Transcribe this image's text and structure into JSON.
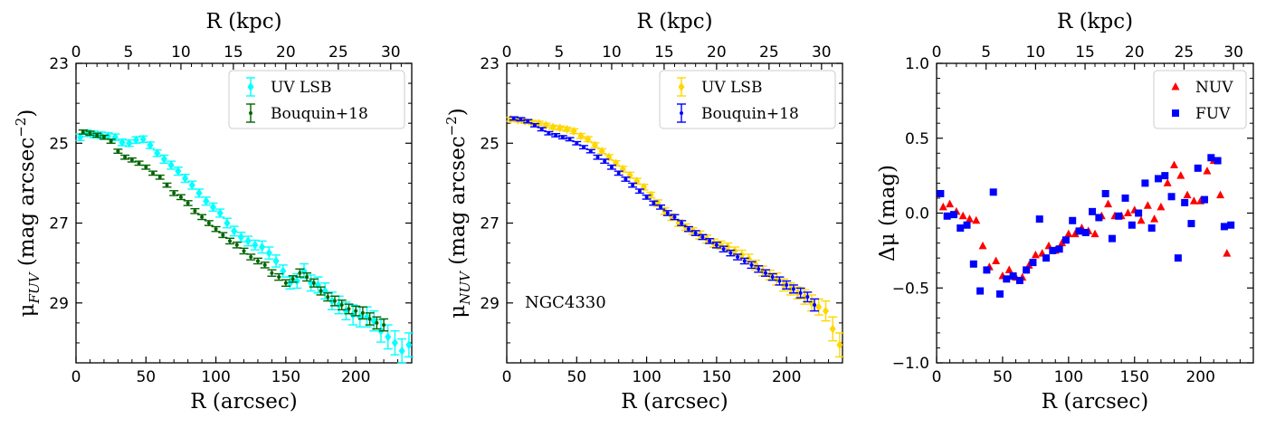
{
  "chart_data": [
    {
      "id": "fuv",
      "type": "scatter",
      "title": "",
      "xlabel": "R (arcsec)",
      "ylabel": "μFUV (mag arcsec−2)",
      "ylabel_main": "μ",
      "ylabel_sub": "FUV",
      "ylabel_unit": " (mag arcsec",
      "ylabel_exp": "−2",
      "ylabel_close": ")",
      "top_xlabel": "R (kpc)",
      "xlim": [
        0,
        240
      ],
      "ylim": [
        30.5,
        23
      ],
      "top_xlim": [
        0,
        32
      ],
      "x_ticks": [
        0,
        50,
        100,
        150,
        200
      ],
      "y_ticks": [
        23,
        25,
        27,
        29
      ],
      "top_ticks": [
        0,
        5,
        10,
        15,
        20,
        25,
        30
      ],
      "legend": "top-right",
      "annotation": "",
      "series": [
        {
          "name": "UV LSB",
          "color": "#00ffff",
          "marker": "diamond-errorbar",
          "x": [
            3,
            8,
            13,
            18,
            23,
            28,
            33,
            38,
            43,
            48,
            53,
            58,
            63,
            68,
            73,
            78,
            83,
            88,
            93,
            98,
            103,
            108,
            113,
            118,
            123,
            128,
            133,
            138,
            143,
            148,
            153,
            158,
            163,
            168,
            173,
            178,
            183,
            188,
            193,
            198,
            203,
            208,
            213,
            218,
            223,
            228,
            233,
            238
          ],
          "y": [
            24.85,
            24.75,
            24.78,
            24.8,
            24.82,
            24.85,
            24.98,
            25.0,
            24.92,
            24.9,
            25.05,
            25.25,
            25.4,
            25.55,
            25.7,
            25.88,
            26.05,
            26.25,
            26.45,
            26.6,
            26.75,
            27.0,
            27.2,
            27.35,
            27.45,
            27.55,
            27.6,
            27.75,
            27.95,
            28.2,
            28.5,
            28.45,
            28.2,
            28.5,
            28.55,
            28.7,
            28.95,
            29.05,
            29.2,
            29.3,
            29.35,
            29.35,
            29.45,
            29.7,
            29.85,
            30.0,
            30.2,
            30.05
          ],
          "err": [
            0.08,
            0.08,
            0.08,
            0.08,
            0.08,
            0.08,
            0.08,
            0.08,
            0.08,
            0.08,
            0.08,
            0.08,
            0.1,
            0.1,
            0.1,
            0.1,
            0.1,
            0.1,
            0.1,
            0.1,
            0.1,
            0.12,
            0.12,
            0.12,
            0.12,
            0.12,
            0.15,
            0.15,
            0.15,
            0.15,
            0.15,
            0.18,
            0.18,
            0.2,
            0.2,
            0.2,
            0.22,
            0.22,
            0.22,
            0.25,
            0.25,
            0.25,
            0.25,
            0.28,
            0.3,
            0.3,
            0.3,
            0.3
          ]
        },
        {
          "name": "Bouquin+18",
          "color": "#006400",
          "marker": "dot-errorbar",
          "x": [
            5,
            10,
            15,
            20,
            25,
            30,
            35,
            40,
            45,
            50,
            55,
            60,
            65,
            70,
            75,
            80,
            85,
            90,
            95,
            100,
            105,
            110,
            115,
            120,
            125,
            130,
            135,
            140,
            145,
            150,
            155,
            160,
            165,
            170,
            175,
            180,
            185,
            190,
            195,
            200,
            205,
            210,
            215,
            220
          ],
          "y": [
            24.72,
            24.75,
            24.8,
            24.85,
            24.95,
            25.2,
            25.35,
            25.42,
            25.5,
            25.6,
            25.75,
            25.85,
            26.05,
            26.25,
            26.35,
            26.5,
            26.7,
            26.85,
            27.0,
            27.15,
            27.3,
            27.45,
            27.55,
            27.7,
            27.85,
            27.95,
            28.05,
            28.25,
            28.35,
            28.5,
            28.4,
            28.25,
            28.35,
            28.5,
            28.7,
            28.85,
            28.95,
            29.05,
            29.15,
            29.2,
            29.25,
            29.4,
            29.5,
            29.55
          ],
          "err": [
            0.05,
            0.05,
            0.05,
            0.05,
            0.05,
            0.05,
            0.05,
            0.05,
            0.05,
            0.05,
            0.05,
            0.05,
            0.05,
            0.06,
            0.06,
            0.06,
            0.06,
            0.06,
            0.06,
            0.06,
            0.06,
            0.07,
            0.07,
            0.07,
            0.07,
            0.07,
            0.07,
            0.08,
            0.08,
            0.08,
            0.08,
            0.1,
            0.1,
            0.1,
            0.1,
            0.1,
            0.12,
            0.12,
            0.12,
            0.12,
            0.15,
            0.15,
            0.15,
            0.15
          ]
        }
      ]
    },
    {
      "id": "nuv",
      "type": "scatter",
      "title": "",
      "xlabel": "R (arcsec)",
      "ylabel": "μNUV (mag arcsec−2)",
      "ylabel_main": "μ",
      "ylabel_sub": "NUV",
      "ylabel_unit": " (mag arcsec",
      "ylabel_exp": "−2",
      "ylabel_close": ")",
      "top_xlabel": "R (kpc)",
      "xlim": [
        0,
        240
      ],
      "ylim": [
        30.5,
        23
      ],
      "top_xlim": [
        0,
        32
      ],
      "x_ticks": [
        0,
        50,
        100,
        150,
        200
      ],
      "y_ticks": [
        23,
        25,
        27,
        29
      ],
      "top_ticks": [
        0,
        5,
        10,
        15,
        20,
        25,
        30
      ],
      "legend": "top-right",
      "annotation": "NGC4330",
      "series": [
        {
          "name": "UV LSB",
          "color": "#ffd700",
          "marker": "diamond-errorbar",
          "x": [
            3,
            8,
            13,
            18,
            23,
            28,
            33,
            38,
            43,
            48,
            53,
            58,
            63,
            68,
            73,
            78,
            83,
            88,
            93,
            98,
            103,
            108,
            113,
            118,
            123,
            128,
            133,
            138,
            143,
            148,
            153,
            158,
            163,
            168,
            173,
            178,
            183,
            188,
            193,
            198,
            203,
            208,
            213,
            218,
            223,
            228,
            233,
            238
          ],
          "y": [
            24.4,
            24.42,
            24.45,
            24.48,
            24.5,
            24.55,
            24.6,
            24.62,
            24.65,
            24.7,
            24.82,
            24.9,
            25.05,
            25.2,
            25.35,
            25.5,
            25.65,
            25.8,
            25.95,
            26.1,
            26.3,
            26.5,
            26.7,
            26.85,
            27.0,
            27.1,
            27.2,
            27.3,
            27.4,
            27.5,
            27.55,
            27.6,
            27.7,
            27.8,
            27.9,
            28.05,
            28.2,
            28.3,
            28.4,
            28.55,
            28.65,
            28.75,
            28.85,
            29.0,
            29.1,
            29.2,
            29.65,
            30.05
          ],
          "err": [
            0.05,
            0.05,
            0.05,
            0.05,
            0.05,
            0.05,
            0.05,
            0.05,
            0.05,
            0.06,
            0.06,
            0.06,
            0.06,
            0.06,
            0.06,
            0.06,
            0.07,
            0.07,
            0.07,
            0.07,
            0.07,
            0.08,
            0.08,
            0.08,
            0.08,
            0.08,
            0.08,
            0.1,
            0.1,
            0.1,
            0.1,
            0.1,
            0.1,
            0.12,
            0.12,
            0.12,
            0.12,
            0.12,
            0.15,
            0.15,
            0.15,
            0.15,
            0.18,
            0.2,
            0.2,
            0.25,
            0.3,
            0.3
          ]
        },
        {
          "name": "Bouquin+18",
          "color": "#0000ff",
          "marker": "dot-errorbar",
          "x": [
            5,
            10,
            15,
            20,
            25,
            30,
            35,
            40,
            45,
            50,
            55,
            60,
            65,
            70,
            75,
            80,
            85,
            90,
            95,
            100,
            105,
            110,
            115,
            120,
            125,
            130,
            135,
            140,
            145,
            150,
            155,
            160,
            165,
            170,
            175,
            180,
            185,
            190,
            195,
            200,
            205,
            210,
            215,
            220
          ],
          "y": [
            24.38,
            24.4,
            24.45,
            24.55,
            24.65,
            24.75,
            24.8,
            24.85,
            24.9,
            25.0,
            25.1,
            25.2,
            25.35,
            25.45,
            25.6,
            25.75,
            25.9,
            26.05,
            26.2,
            26.35,
            26.5,
            26.6,
            26.75,
            26.85,
            27.0,
            27.15,
            27.25,
            27.35,
            27.45,
            27.55,
            27.65,
            27.75,
            27.85,
            27.95,
            28.05,
            28.15,
            28.25,
            28.35,
            28.45,
            28.55,
            28.65,
            28.75,
            28.85,
            29.05
          ],
          "err": [
            0.04,
            0.04,
            0.04,
            0.04,
            0.04,
            0.04,
            0.04,
            0.04,
            0.04,
            0.04,
            0.04,
            0.04,
            0.05,
            0.05,
            0.05,
            0.05,
            0.05,
            0.05,
            0.05,
            0.05,
            0.05,
            0.05,
            0.06,
            0.06,
            0.06,
            0.06,
            0.06,
            0.06,
            0.06,
            0.07,
            0.07,
            0.07,
            0.07,
            0.07,
            0.08,
            0.08,
            0.08,
            0.08,
            0.1,
            0.1,
            0.1,
            0.12,
            0.12,
            0.15
          ]
        }
      ]
    },
    {
      "id": "delta",
      "type": "scatter",
      "title": "",
      "xlabel": "R (arcsec)",
      "ylabel": "Δμ (mag)",
      "top_xlabel": "R (kpc)",
      "xlim": [
        0,
        240
      ],
      "ylim": [
        -1.0,
        1.0
      ],
      "top_xlim": [
        0,
        32
      ],
      "x_ticks": [
        0,
        50,
        100,
        150,
        200
      ],
      "x_tick_labels": [
        "0",
        "50",
        "100",
        "150",
        "200"
      ],
      "y_ticks": [
        -1.0,
        -0.5,
        0.0,
        0.5,
        1.0
      ],
      "y_tick_labels": [
        "−1.0",
        "−0.5",
        "0.0",
        "0.5",
        "1.0"
      ],
      "top_ticks": [
        0,
        5,
        10,
        15,
        20,
        25,
        30
      ],
      "legend": "top-right",
      "annotation": "",
      "series": [
        {
          "name": "NUV",
          "color": "#ff0000",
          "marker": "triangle",
          "x": [
            5,
            10,
            15,
            20,
            25,
            30,
            35,
            40,
            45,
            50,
            55,
            60,
            65,
            70,
            75,
            80,
            85,
            90,
            95,
            100,
            105,
            110,
            115,
            120,
            125,
            130,
            135,
            140,
            145,
            150,
            155,
            160,
            165,
            170,
            175,
            180,
            185,
            190,
            195,
            200,
            205,
            210,
            215,
            220
          ],
          "y": [
            0.04,
            0.06,
            0.01,
            -0.02,
            -0.04,
            -0.05,
            -0.22,
            -0.36,
            -0.32,
            -0.42,
            -0.38,
            -0.43,
            -0.43,
            -0.35,
            -0.28,
            -0.27,
            -0.22,
            -0.25,
            -0.2,
            -0.14,
            -0.14,
            -0.1,
            -0.12,
            -0.14,
            -0.02,
            0.06,
            -0.02,
            -0.02,
            0.0,
            0.02,
            -0.05,
            0.05,
            -0.04,
            0.04,
            0.2,
            0.32,
            0.25,
            0.12,
            0.08,
            0.08,
            0.28,
            0.35,
            0.12,
            -0.27
          ]
        },
        {
          "name": "FUV",
          "color": "#0000ff",
          "marker": "square",
          "x": [
            3,
            8,
            13,
            18,
            23,
            28,
            33,
            38,
            43,
            48,
            53,
            58,
            63,
            68,
            73,
            78,
            83,
            88,
            93,
            98,
            103,
            108,
            113,
            118,
            123,
            128,
            133,
            138,
            143,
            148,
            153,
            158,
            163,
            168,
            173,
            178,
            183,
            188,
            193,
            198,
            203,
            208,
            213,
            218,
            223
          ],
          "y": [
            0.13,
            -0.02,
            -0.01,
            -0.1,
            -0.08,
            -0.34,
            -0.52,
            -0.38,
            0.14,
            -0.54,
            -0.44,
            -0.42,
            -0.45,
            -0.38,
            -0.33,
            -0.04,
            -0.3,
            -0.25,
            -0.24,
            -0.18,
            -0.05,
            -0.12,
            -0.13,
            0.01,
            -0.03,
            0.13,
            -0.17,
            -0.02,
            0.1,
            -0.08,
            0.0,
            0.2,
            -0.1,
            0.23,
            0.25,
            0.11,
            -0.3,
            0.07,
            -0.07,
            0.3,
            0.09,
            0.37,
            0.35,
            -0.09,
            -0.08
          ]
        }
      ]
    }
  ]
}
